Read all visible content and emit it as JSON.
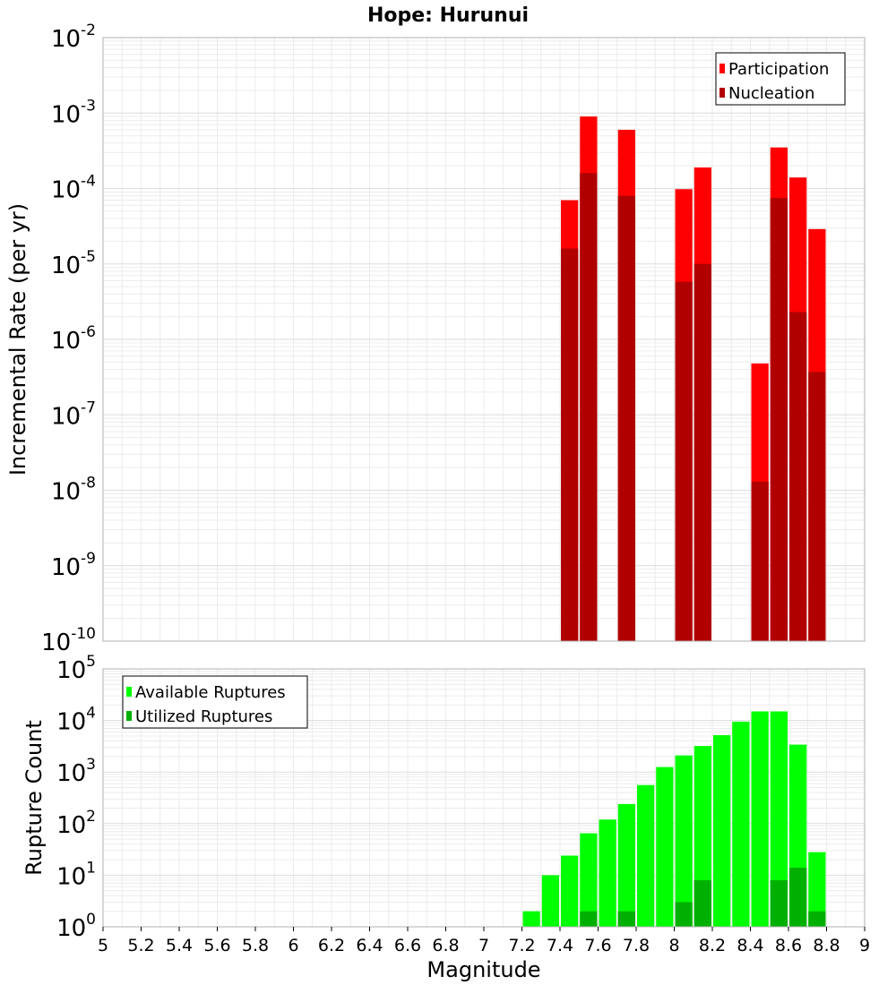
{
  "chart_data": [
    {
      "type": "bar",
      "title": "Hope: Hurunui",
      "xlabel": "",
      "ylabel": "Incremental Rate (per yr)",
      "yscale": "log",
      "ylim_exp": [
        -10,
        -2
      ],
      "xlim": [
        5,
        9
      ],
      "grid": true,
      "legend_placement": "top-right",
      "overlay": true,
      "series": [
        {
          "name": "Participation",
          "color": "#ff0000",
          "x": [
            7.45,
            7.55,
            7.75,
            8.05,
            8.15,
            8.45,
            8.55,
            8.65,
            8.75
          ],
          "values": [
            7e-05,
            0.0009,
            0.0006,
            9.8e-05,
            0.00019,
            4.8e-07,
            0.00035,
            0.00014,
            2.9e-05
          ]
        },
        {
          "name": "Nucleation",
          "color": "#b00000",
          "x": [
            7.45,
            7.55,
            7.75,
            8.05,
            8.15,
            8.45,
            8.55,
            8.65,
            8.75
          ],
          "values": [
            1.6e-05,
            0.00016,
            8e-05,
            5.8e-06,
            1e-05,
            1.3e-08,
            7.5e-05,
            2.3e-06,
            3.7e-07
          ]
        }
      ]
    },
    {
      "type": "bar",
      "title": "",
      "xlabel": "Magnitude",
      "ylabel": "Rupture Count",
      "yscale": "log",
      "ylim_exp": [
        0,
        5
      ],
      "xlim": [
        5,
        9
      ],
      "grid": true,
      "legend_placement": "top-left",
      "overlay": true,
      "x_ticks": [
        "5",
        "5.2",
        "5.4",
        "5.6",
        "5.8",
        "6",
        "6.2",
        "6.4",
        "6.6",
        "6.8",
        "7",
        "7.2",
        "7.4",
        "7.6",
        "7.8",
        "8",
        "8.2",
        "8.4",
        "8.6",
        "8.8",
        "9"
      ],
      "series": [
        {
          "name": "Available Ruptures",
          "color": "#00ff00",
          "x": [
            6.85,
            7.25,
            7.35,
            7.45,
            7.55,
            7.65,
            7.75,
            7.85,
            7.95,
            8.05,
            8.15,
            8.25,
            8.35,
            8.45,
            8.55,
            8.65,
            8.75
          ],
          "values": [
            1,
            2,
            10,
            24,
            65,
            120,
            240,
            560,
            1250,
            2100,
            3200,
            5200,
            9500,
            15000,
            15000,
            3400,
            28
          ]
        },
        {
          "name": "Utilized Ruptures",
          "color": "#00b000",
          "x": [
            7.45,
            7.55,
            7.75,
            8.05,
            8.15,
            8.45,
            8.55,
            8.65,
            8.75
          ],
          "values": [
            1,
            2,
            2,
            3,
            8,
            1,
            8,
            14,
            2
          ]
        }
      ]
    }
  ]
}
